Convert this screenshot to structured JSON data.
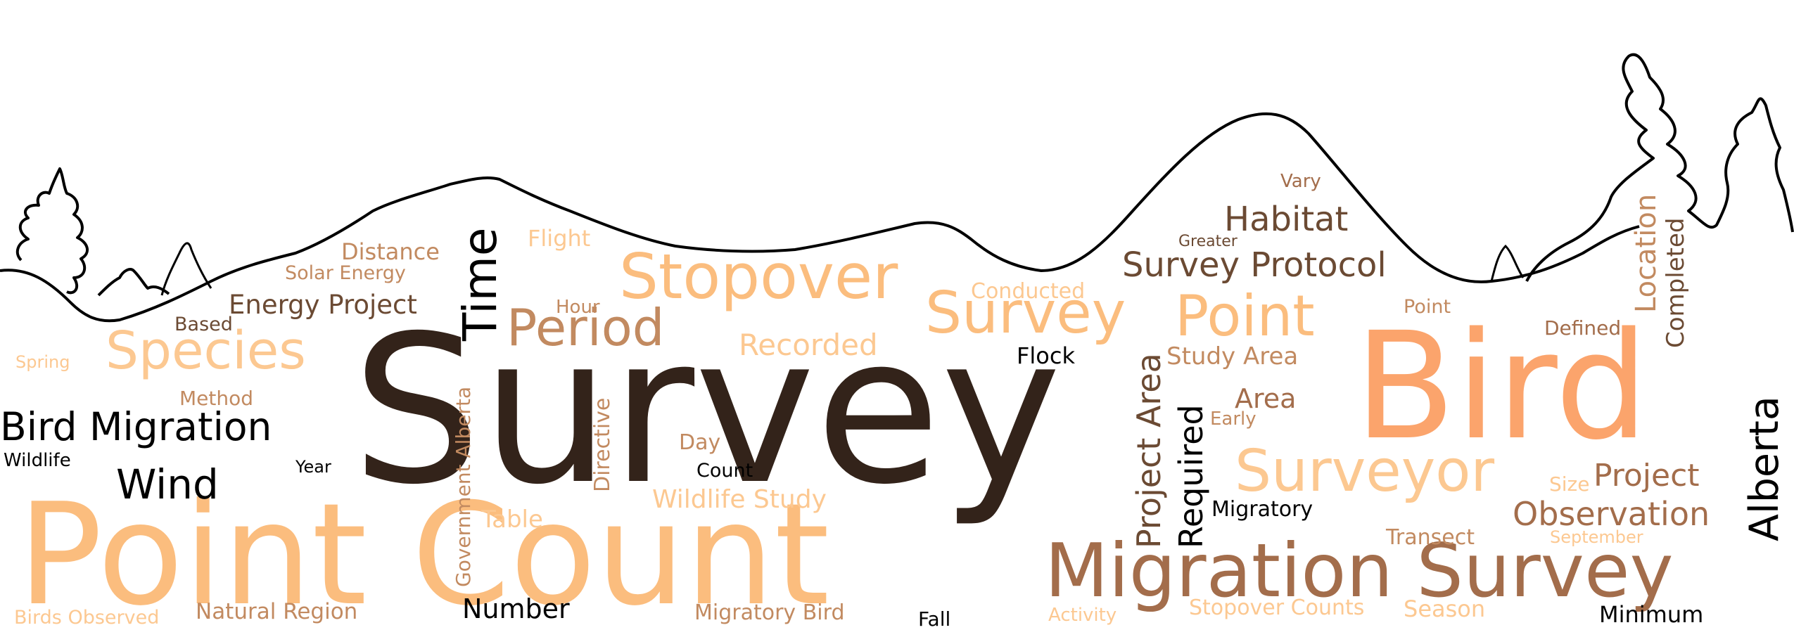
{
  "colors": {
    "darkest": "#33231a",
    "dark": "#6b4a33",
    "medium": "#a36d4b",
    "light_brown": "#c28a60",
    "orange": "#fba46c",
    "peach": "#fbbd7e",
    "light_peach": "#fcc891",
    "black": "#000000",
    "outline": "#000000"
  },
  "words": [
    {
      "text": "Survey",
      "color": "darkest",
      "mono": false
    },
    {
      "text": "Point Count",
      "color": "peach",
      "mono": false
    },
    {
      "text": "Bird",
      "color": "orange",
      "mono": false
    },
    {
      "text": "Migration Survey",
      "color": "medium",
      "mono": false
    },
    {
      "text": "Stopover",
      "color": "peach",
      "mono": false
    },
    {
      "text": "Survey",
      "color": "peach",
      "mono": false
    },
    {
      "text": "Point",
      "color": "peach",
      "mono": false
    },
    {
      "text": "Surveyor",
      "color": "light_peach",
      "mono": false
    },
    {
      "text": "Species",
      "color": "light_peach",
      "mono": false
    },
    {
      "text": "Period",
      "color": "light_brown",
      "mono": false
    },
    {
      "text": "Time",
      "color": "black",
      "mono": false
    },
    {
      "text": "Bird Migration",
      "color": "black",
      "mono": false
    },
    {
      "text": "Wind",
      "color": "black",
      "mono": false
    },
    {
      "text": "Alberta",
      "color": "black",
      "mono": false
    },
    {
      "text": "Habitat",
      "color": "dark",
      "mono": false
    },
    {
      "text": "Survey Protocol",
      "color": "dark",
      "mono": false
    },
    {
      "text": "Project Area",
      "color": "dark",
      "mono": false
    },
    {
      "text": "Required",
      "color": "black",
      "mono": false
    },
    {
      "text": "Observation",
      "color": "medium",
      "mono": false
    },
    {
      "text": "Project",
      "color": "medium",
      "mono": false
    },
    {
      "text": "Recorded",
      "color": "light_peach",
      "mono": false
    },
    {
      "text": "Energy Project",
      "color": "dark",
      "mono": false
    },
    {
      "text": "Location",
      "color": "light_brown",
      "mono": false
    },
    {
      "text": "Completed",
      "color": "dark",
      "mono": false
    },
    {
      "text": "Area",
      "color": "medium",
      "mono": false
    },
    {
      "text": "Study Area",
      "color": "light_brown",
      "mono": false
    },
    {
      "text": "Wildlife Study",
      "color": "light_peach",
      "mono": false
    },
    {
      "text": "Number",
      "color": "black",
      "mono": false
    },
    {
      "text": "Distance",
      "color": "light_brown",
      "mono": false
    },
    {
      "text": "Solar Energy",
      "color": "light_brown",
      "mono": false
    },
    {
      "text": "Flight",
      "color": "light_peach",
      "mono": false
    },
    {
      "text": "Conducted",
      "color": "light_peach",
      "mono": false
    },
    {
      "text": "Vary",
      "color": "medium",
      "mono": false
    },
    {
      "text": "Greater",
      "color": "dark",
      "mono": false
    },
    {
      "text": "Hour",
      "color": "light_brown",
      "mono": false
    },
    {
      "text": "Based",
      "color": "dark",
      "mono": false
    },
    {
      "text": "Spring",
      "color": "light_peach",
      "mono": false
    },
    {
      "text": "Method",
      "color": "light_brown",
      "mono": false
    },
    {
      "text": "Wildlife",
      "color": "black",
      "mono": false
    },
    {
      "text": "Year",
      "color": "black",
      "mono": false
    },
    {
      "text": "Government Alberta",
      "color": "light_brown",
      "mono": false
    },
    {
      "text": "Directive",
      "color": "light_brown",
      "mono": false
    },
    {
      "text": "Day",
      "color": "light_brown",
      "mono": false
    },
    {
      "text": "Count",
      "color": "black",
      "mono": false
    },
    {
      "text": "Table",
      "color": "light_peach",
      "mono": false
    },
    {
      "text": "Flock",
      "color": "black",
      "mono": false
    },
    {
      "text": "Early",
      "color": "light_brown",
      "mono": false
    },
    {
      "text": "Migratory",
      "color": "black",
      "mono": false
    },
    {
      "text": "Transect",
      "color": "light_brown",
      "mono": false
    },
    {
      "text": "September",
      "color": "light_peach",
      "mono": false
    },
    {
      "text": "Size",
      "color": "light_peach",
      "mono": false
    },
    {
      "text": "Point",
      "color": "light_brown",
      "mono": false
    },
    {
      "text": "Defined",
      "color": "medium",
      "mono": false
    },
    {
      "text": "Birds Observed",
      "color": "light_peach",
      "mono": false
    },
    {
      "text": "Natural Region",
      "color": "light_brown",
      "mono": false
    },
    {
      "text": "Migratory Bird",
      "color": "light_brown",
      "mono": false
    },
    {
      "text": "Fall",
      "color": "black",
      "mono": false
    },
    {
      "text": "Activity",
      "color": "light_peach",
      "mono": false
    },
    {
      "text": "Stopover Counts",
      "color": "light_peach",
      "mono": false
    },
    {
      "text": "Season",
      "color": "light_peach",
      "mono": false
    },
    {
      "text": "Minimum",
      "color": "black",
      "mono": false
    }
  ]
}
